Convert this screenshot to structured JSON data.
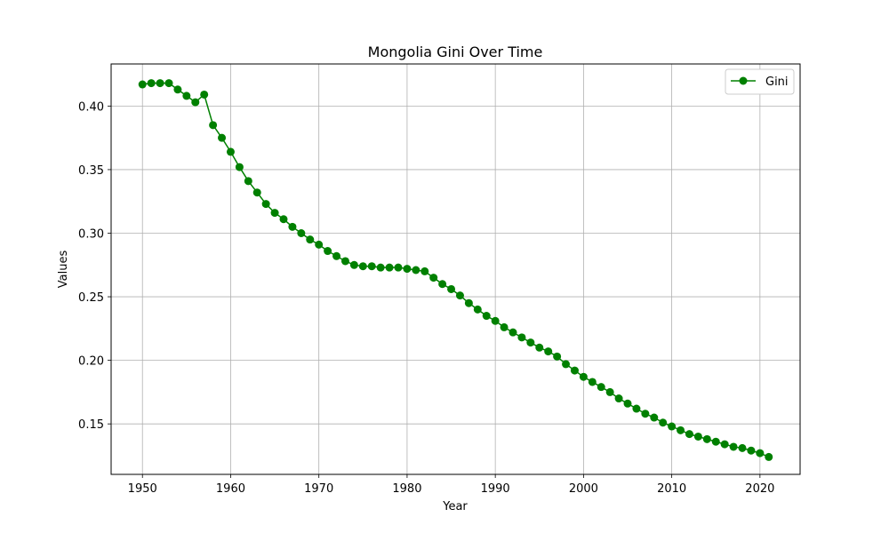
{
  "chart_data": {
    "type": "line",
    "title": "Mongolia Gini Over Time",
    "xlabel": "Year",
    "ylabel": "Values",
    "xlim": [
      1946.45,
      2024.55
    ],
    "ylim": [
      0.1103,
      0.4331
    ],
    "xticks": [
      1950,
      1960,
      1970,
      1980,
      1990,
      2000,
      2010,
      2020
    ],
    "yticks": [
      0.15,
      0.2,
      0.25,
      0.3,
      0.35,
      0.4
    ],
    "ytick_labels": [
      "0.15",
      "0.20",
      "0.25",
      "0.30",
      "0.35",
      "0.40"
    ],
    "grid": true,
    "legend_position": "top-right",
    "series": [
      {
        "name": "Gini",
        "color": "#008000",
        "marker": "circle",
        "x": [
          1950,
          1951,
          1952,
          1953,
          1954,
          1955,
          1956,
          1957,
          1958,
          1959,
          1960,
          1961,
          1962,
          1963,
          1964,
          1965,
          1966,
          1967,
          1968,
          1969,
          1970,
          1971,
          1972,
          1973,
          1974,
          1975,
          1976,
          1977,
          1978,
          1979,
          1980,
          1981,
          1982,
          1983,
          1984,
          1985,
          1986,
          1987,
          1988,
          1989,
          1990,
          1991,
          1992,
          1993,
          1994,
          1995,
          1996,
          1997,
          1998,
          1999,
          2000,
          2001,
          2002,
          2003,
          2004,
          2005,
          2006,
          2007,
          2008,
          2009,
          2010,
          2011,
          2012,
          2013,
          2014,
          2015,
          2016,
          2017,
          2018,
          2019,
          2020,
          2021
        ],
        "values": [
          0.417,
          0.418,
          0.418,
          0.418,
          0.413,
          0.408,
          0.403,
          0.409,
          0.385,
          0.375,
          0.364,
          0.352,
          0.341,
          0.332,
          0.323,
          0.316,
          0.311,
          0.305,
          0.3,
          0.295,
          0.291,
          0.286,
          0.282,
          0.278,
          0.275,
          0.274,
          0.274,
          0.273,
          0.273,
          0.273,
          0.272,
          0.271,
          0.27,
          0.265,
          0.26,
          0.256,
          0.251,
          0.245,
          0.24,
          0.235,
          0.231,
          0.226,
          0.222,
          0.218,
          0.214,
          0.21,
          0.207,
          0.203,
          0.197,
          0.192,
          0.187,
          0.183,
          0.179,
          0.175,
          0.17,
          0.166,
          0.162,
          0.158,
          0.155,
          0.151,
          0.148,
          0.145,
          0.142,
          0.14,
          0.138,
          0.136,
          0.134,
          0.132,
          0.131,
          0.129,
          0.127,
          0.124
        ]
      }
    ]
  }
}
